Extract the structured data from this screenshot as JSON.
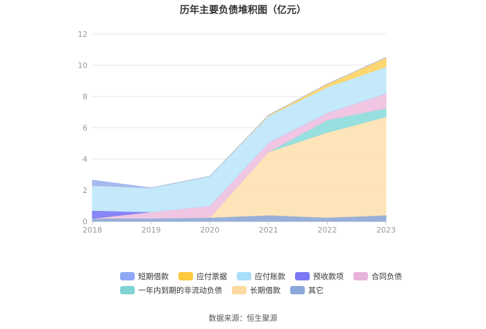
{
  "chart_data": {
    "type": "area",
    "stacked": true,
    "title": "历年主要负债堆积图（亿元）",
    "categories": [
      "2018",
      "2019",
      "2020",
      "2021",
      "2022",
      "2023"
    ],
    "ylim": [
      0,
      12
    ],
    "yticks": [
      "0",
      "2",
      "4",
      "6",
      "8",
      "10",
      "12"
    ],
    "grid": true,
    "legend_position": "bottom",
    "series": [
      {
        "name": "其它",
        "color": "#8fa9d6",
        "values": [
          0.2,
          0.2,
          0.25,
          0.4,
          0.25,
          0.4
        ]
      },
      {
        "name": "长期借款",
        "color": "#fde3b3",
        "values": [
          0.0,
          0.0,
          0.0,
          4.05,
          5.45,
          6.3
        ]
      },
      {
        "name": "一年内到期的非流动负债",
        "color": "#8fdcdc",
        "values": [
          0.0,
          0.0,
          0.0,
          0.0,
          0.8,
          0.55
        ]
      },
      {
        "name": "合同负债",
        "color": "#efc1e0",
        "values": [
          0.0,
          0.4,
          0.75,
          0.6,
          0.45,
          0.95
        ]
      },
      {
        "name": "预收款项",
        "color": "#7d7cf6",
        "values": [
          0.5,
          0.0,
          0.0,
          0.0,
          0.0,
          0.0
        ]
      },
      {
        "name": "应付账款",
        "color": "#bfe7fb",
        "values": [
          1.6,
          1.55,
          1.9,
          1.7,
          1.65,
          1.7
        ]
      },
      {
        "name": "应付票据",
        "color": "#ffd466",
        "values": [
          0.0,
          0.0,
          0.0,
          0.05,
          0.2,
          0.6
        ]
      },
      {
        "name": "短期借款",
        "color": "#9fb3ee",
        "values": [
          0.35,
          0.0,
          0.0,
          0.0,
          0.0,
          0.0
        ]
      }
    ]
  },
  "legend": {
    "row1": [
      "短期借款",
      "应付票据",
      "应付账款",
      "预收款项",
      "合同负债"
    ],
    "row2": [
      "一年内到期的非流动负债",
      "长期借款",
      "其它"
    ],
    "colors": {
      "短期借款": "#8fa8f6",
      "应付票据": "#ffc83d",
      "应付账款": "#a9defa",
      "预收款项": "#7a78f4",
      "合同负债": "#e8b4da",
      "一年内到期的非流动负债": "#7fd4d3",
      "长期借款": "#fdd9a0",
      "其它": "#8aa8d8"
    }
  },
  "source": "数据来源：恒生聚源"
}
